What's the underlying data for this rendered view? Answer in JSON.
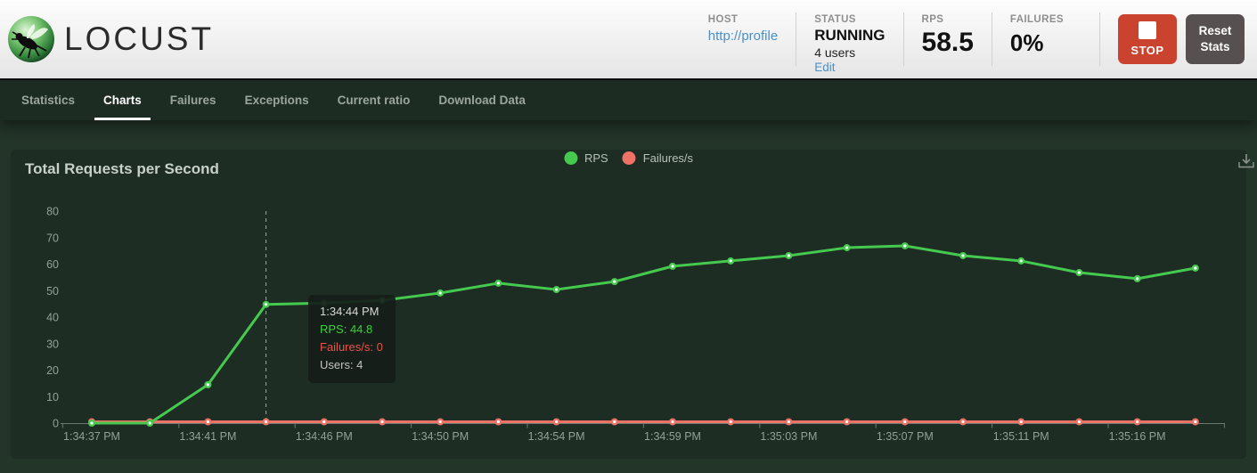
{
  "header": {
    "logo_text": "LOCUST",
    "host": {
      "label": "HOST",
      "value": "http://profile"
    },
    "status": {
      "label": "STATUS",
      "value": "RUNNING",
      "users": "4 users",
      "edit": "Edit"
    },
    "rps": {
      "label": "RPS",
      "value": "58.5"
    },
    "failures": {
      "label": "FAILURES",
      "value": "0%"
    },
    "stop_button": "STOP",
    "reset_button": "Reset Stats"
  },
  "nav": {
    "items": [
      {
        "label": "Statistics",
        "active": false
      },
      {
        "label": "Charts",
        "active": true
      },
      {
        "label": "Failures",
        "active": false
      },
      {
        "label": "Exceptions",
        "active": false
      },
      {
        "label": "Current ratio",
        "active": false
      },
      {
        "label": "Download Data",
        "active": false
      }
    ]
  },
  "chart": {
    "title": "Total Requests per Second",
    "legend": [
      {
        "name": "RPS",
        "color": "#45c94f"
      },
      {
        "name": "Failures/s",
        "color": "#ee7266"
      }
    ]
  },
  "tooltip": {
    "time": "1:34:44 PM",
    "rps_line": "RPS: 44.8",
    "failures_line": "Failures/s: 0",
    "users_line": "Users: 4"
  },
  "chart_data": {
    "type": "line",
    "title": "Total Requests per Second",
    "x_tick_labels": [
      "1:34:37 PM",
      "1:34:41 PM",
      "1:34:46 PM",
      "1:34:50 PM",
      "1:34:54 PM",
      "1:34:59 PM",
      "1:35:03 PM",
      "1:35:07 PM",
      "1:35:11 PM",
      "1:35:16 PM"
    ],
    "points_per_tick": 2,
    "num_points": 20,
    "series": [
      {
        "name": "RPS",
        "color": "#45c94f",
        "values": [
          0,
          0,
          14.5,
          44.8,
          45.3,
          46.3,
          49.1,
          52.8,
          50.4,
          53.4,
          59.2,
          61.2,
          63.2,
          66.2,
          66.9,
          63.2,
          61.2,
          56.8,
          54.5,
          58.5
        ]
      },
      {
        "name": "Failures/s",
        "color": "#ee7266",
        "values": [
          0,
          0,
          0,
          0,
          0,
          0,
          0,
          0,
          0,
          0,
          0,
          0,
          0,
          0,
          0,
          0,
          0,
          0,
          0,
          0
        ]
      }
    ],
    "ylim": [
      0,
      80
    ],
    "yticks": [
      0,
      10,
      20,
      30,
      40,
      50,
      60,
      70,
      80
    ],
    "grid": false,
    "legend_position": "top-center",
    "highlight_index": 3,
    "highlight_time": "1:34:44 PM"
  }
}
